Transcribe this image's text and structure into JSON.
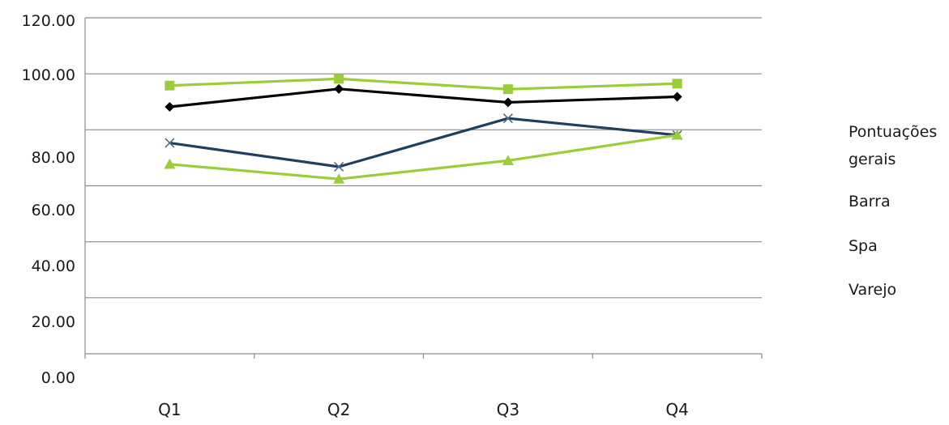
{
  "chart_data": {
    "type": "line",
    "title": "",
    "xlabel": "",
    "ylabel": "",
    "categories": [
      "Q1",
      "Q2",
      "Q3",
      "Q4"
    ],
    "y_tick_labels": [
      "0.00",
      "20.00",
      "40.00",
      "60.00",
      "80.00",
      "100.00",
      "120.00"
    ],
    "ylim": [
      0,
      120
    ],
    "grid": true,
    "legend_position": "right",
    "series": [
      {
        "name": "Pontuações gerais",
        "color": "#000000",
        "marker": "diamond",
        "values": [
          88.2,
          94.6,
          89.8,
          91.8
        ]
      },
      {
        "name": "Barra",
        "color": "#9acd3a",
        "marker": "square",
        "values": [
          95.8,
          98.2,
          94.5,
          96.5
        ]
      },
      {
        "name": "Spa",
        "color": "#1f3f60",
        "marker": "x",
        "values": [
          75.3,
          66.8,
          84.1,
          78.1
        ]
      },
      {
        "name": "Varejo",
        "color": "#9acd3a",
        "marker": "triangle",
        "values": [
          67.7,
          62.4,
          69.0,
          78.1
        ]
      }
    ],
    "legend_lines": [
      [
        "Pontuações",
        "gerais"
      ],
      [
        "Barra"
      ],
      [
        "Spa"
      ],
      [
        "Varejo"
      ]
    ]
  }
}
